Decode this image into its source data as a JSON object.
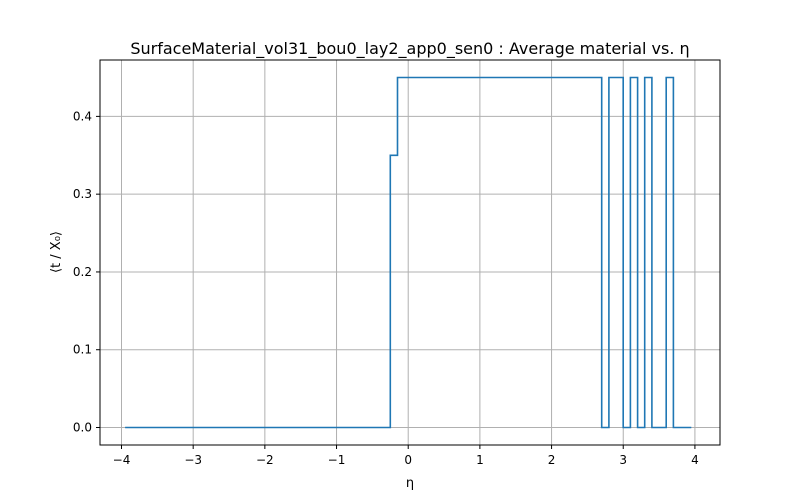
{
  "chart_data": {
    "type": "line",
    "title": "SurfaceMaterial_vol31_bou0_lay2_app0_sen0 : Average material vs. η",
    "xlabel": "η",
    "ylabel": "⟨t / X₀⟩",
    "xlim": [
      -4.3,
      4.35
    ],
    "ylim": [
      -0.0225,
      0.4725
    ],
    "grid": true,
    "x_ticks": [
      -4,
      -3,
      -2,
      -1,
      0,
      1,
      2,
      3,
      4
    ],
    "x_tick_labels": [
      "−4",
      "−3",
      "−2",
      "−1",
      "0",
      "1",
      "2",
      "3",
      "4"
    ],
    "y_ticks": [
      0.0,
      0.1,
      0.2,
      0.3,
      0.4
    ],
    "y_tick_labels": [
      "0.0",
      "0.1",
      "0.2",
      "0.3",
      "0.4"
    ],
    "series": [
      {
        "name": "average material",
        "color": "#1f77b4",
        "drawstyle": "steps",
        "points": [
          [
            -3.95,
            0.0
          ],
          [
            -0.25,
            0.0
          ],
          [
            -0.25,
            0.35
          ],
          [
            -0.15,
            0.35
          ],
          [
            -0.15,
            0.45
          ],
          [
            2.7,
            0.45
          ],
          [
            2.7,
            0.0
          ],
          [
            2.8,
            0.0
          ],
          [
            2.8,
            0.45
          ],
          [
            3.0,
            0.45
          ],
          [
            3.0,
            0.0
          ],
          [
            3.1,
            0.0
          ],
          [
            3.1,
            0.45
          ],
          [
            3.2,
            0.45
          ],
          [
            3.2,
            0.0
          ],
          [
            3.3,
            0.0
          ],
          [
            3.3,
            0.45
          ],
          [
            3.4,
            0.45
          ],
          [
            3.4,
            0.0
          ],
          [
            3.6,
            0.0
          ],
          [
            3.6,
            0.45
          ],
          [
            3.7,
            0.45
          ],
          [
            3.7,
            0.0
          ],
          [
            3.95,
            0.0
          ]
        ]
      }
    ]
  }
}
